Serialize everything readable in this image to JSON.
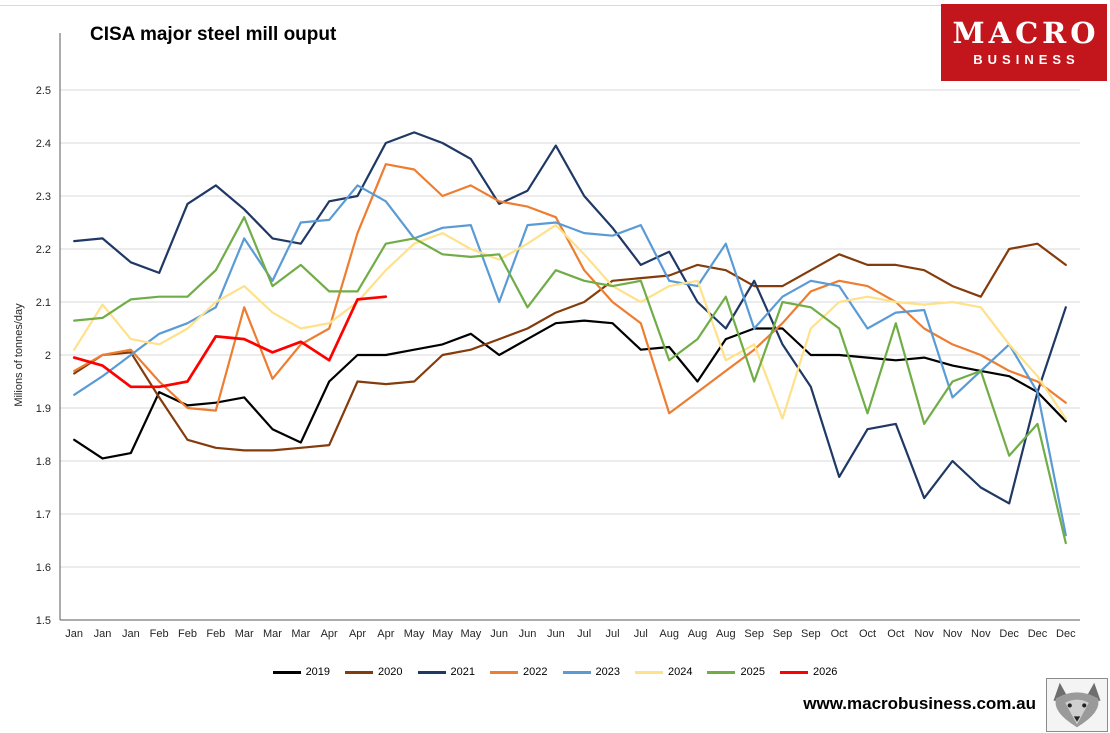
{
  "title": "CISA major steel mill ouput",
  "logo": {
    "line1": "MACRO",
    "line2": "BUSINESS",
    "bg": "#C3161C"
  },
  "footer": {
    "url": "www.macrobusiness.com.au",
    "wolf_icon": "fox-head-logo"
  },
  "chart_data": {
    "type": "line",
    "title": "CISA major steel mill ouput",
    "xlabel": "",
    "ylabel": "Milions of tonnes/day",
    "ylim": [
      1.5,
      2.5
    ],
    "ytick_step": 0.1,
    "ytick_labels": [
      "1.5",
      "1.6",
      "1.7",
      "1.8",
      "1.9",
      "2",
      "2.1",
      "2.2",
      "2.3",
      "2.4",
      "2.5"
    ],
    "grid": true,
    "legend_position": "bottom",
    "gridline_color": "#d9d9d9",
    "axis_color": "#595959",
    "x_labels": [
      "Jan",
      "Jan",
      "Jan",
      "Feb",
      "Feb",
      "Feb",
      "Mar",
      "Mar",
      "Mar",
      "Apr",
      "Apr",
      "Apr",
      "May",
      "May",
      "May",
      "Jun",
      "Jun",
      "Jun",
      "Jul",
      "Jul",
      "Jul",
      "Aug",
      "Aug",
      "Aug",
      "Sep",
      "Sep",
      "Sep",
      "Oct",
      "Oct",
      "Oct",
      "Nov",
      "Nov",
      "Nov",
      "Dec",
      "Dec",
      "Dec"
    ],
    "series": [
      {
        "name": "2019",
        "color": "#000000",
        "values": [
          1.84,
          1.805,
          1.815,
          1.93,
          1.905,
          1.91,
          1.92,
          1.86,
          1.835,
          1.95,
          2.0,
          2.0,
          2.01,
          2.02,
          2.04,
          2.0,
          2.03,
          2.06,
          2.065,
          2.06,
          2.01,
          2.015,
          1.95,
          2.03,
          2.05,
          2.05,
          2.0,
          2.0,
          1.995,
          1.99,
          1.995,
          1.98,
          1.97,
          1.96,
          1.93,
          1.875
        ]
      },
      {
        "name": "2020",
        "color": "#843C0C",
        "values": [
          1.965,
          2.0,
          2.005,
          1.92,
          1.84,
          1.825,
          1.82,
          1.82,
          1.825,
          1.83,
          1.95,
          1.945,
          1.95,
          2.0,
          2.01,
          2.03,
          2.05,
          2.08,
          2.1,
          2.14,
          2.145,
          2.15,
          2.17,
          2.16,
          2.13,
          2.13,
          2.16,
          2.19,
          2.17,
          2.17,
          2.16,
          2.13,
          2.11,
          2.2,
          2.21,
          2.17
        ]
      },
      {
        "name": "2021",
        "color": "#1F3864",
        "values": [
          2.215,
          2.22,
          2.175,
          2.155,
          2.285,
          2.32,
          2.275,
          2.22,
          2.21,
          2.29,
          2.3,
          2.4,
          2.42,
          2.4,
          2.37,
          2.285,
          2.31,
          2.395,
          2.3,
          2.24,
          2.17,
          2.195,
          2.1,
          2.05,
          2.14,
          2.02,
          1.94,
          1.77,
          1.86,
          1.87,
          1.73,
          1.8,
          1.75,
          1.72,
          1.93,
          2.09
        ]
      },
      {
        "name": "2022",
        "color": "#ED7D31",
        "values": [
          1.97,
          2.0,
          2.01,
          1.95,
          1.9,
          1.895,
          2.09,
          1.955,
          2.02,
          2.05,
          2.23,
          2.36,
          2.35,
          2.3,
          2.32,
          2.29,
          2.28,
          2.26,
          2.16,
          2.1,
          2.06,
          1.89,
          1.93,
          1.97,
          2.01,
          2.06,
          2.12,
          2.14,
          2.13,
          2.1,
          2.05,
          2.02,
          2.0,
          1.97,
          1.95,
          1.91
        ]
      },
      {
        "name": "2023",
        "color": "#5B9BD5",
        "values": [
          1.925,
          1.96,
          2.0,
          2.04,
          2.06,
          2.09,
          2.22,
          2.14,
          2.25,
          2.255,
          2.32,
          2.29,
          2.22,
          2.24,
          2.245,
          2.1,
          2.245,
          2.25,
          2.23,
          2.225,
          2.245,
          2.14,
          2.13,
          2.21,
          2.05,
          2.11,
          2.14,
          2.13,
          2.05,
          2.08,
          2.085,
          1.92,
          1.97,
          2.02,
          1.93,
          1.66
        ]
      },
      {
        "name": "2024",
        "color": "#FFE18A",
        "values": [
          2.01,
          2.095,
          2.03,
          2.02,
          2.05,
          2.1,
          2.13,
          2.08,
          2.05,
          2.06,
          2.1,
          2.16,
          2.21,
          2.23,
          2.2,
          2.18,
          2.21,
          2.245,
          2.19,
          2.13,
          2.1,
          2.13,
          2.14,
          1.99,
          2.02,
          1.88,
          2.05,
          2.1,
          2.11,
          2.1,
          2.095,
          2.1,
          2.09,
          2.02,
          1.96,
          1.88
        ]
      },
      {
        "name": "2025",
        "color": "#70AD47",
        "values": [
          2.065,
          2.07,
          2.105,
          2.11,
          2.11,
          2.16,
          2.26,
          2.13,
          2.17,
          2.12,
          2.12,
          2.21,
          2.22,
          2.19,
          2.185,
          2.19,
          2.09,
          2.16,
          2.14,
          2.13,
          2.14,
          1.99,
          2.03,
          2.11,
          1.95,
          2.1,
          2.09,
          2.05,
          1.89,
          2.06,
          1.87,
          1.95,
          1.97,
          1.81,
          1.87,
          1.645
        ]
      },
      {
        "name": "2026",
        "color": "#FF0000",
        "width": 2.7,
        "values": [
          1.995,
          1.98,
          1.94,
          1.94,
          1.95,
          2.035,
          2.03,
          2.005,
          2.025,
          1.99,
          2.105,
          2.11,
          null,
          null,
          null,
          null,
          null,
          null,
          null,
          null,
          null,
          null,
          null,
          null,
          null,
          null,
          null,
          null,
          null,
          null,
          null,
          null,
          null,
          null,
          null,
          null
        ]
      }
    ]
  }
}
